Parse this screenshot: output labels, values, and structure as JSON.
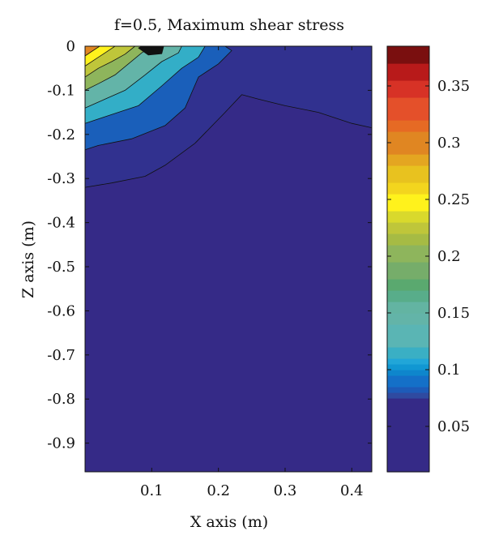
{
  "chart_data": {
    "type": "heatmap",
    "title": "f=0.5, Maximum shear stress",
    "xlabel": "X axis (m)",
    "ylabel": "Z axis (m)",
    "xlim": [
      0.0,
      0.43
    ],
    "ylim": [
      -0.965,
      0.0
    ],
    "x_ticks": [
      0.1,
      0.2,
      0.3,
      0.4
    ],
    "x_tick_labels": [
      "0.1",
      "0.2",
      "0.3",
      "0.4"
    ],
    "y_ticks": [
      0,
      -0.1,
      -0.2,
      -0.3,
      -0.4,
      -0.5,
      -0.6,
      -0.7,
      -0.8,
      -0.9
    ],
    "y_tick_labels": [
      "0",
      "-0.1",
      "-0.2",
      "-0.3",
      "-0.4",
      "-0.5",
      "-0.6",
      "-0.7",
      "-0.8",
      "-0.9"
    ],
    "colorbar": {
      "range": [
        0.01,
        0.385
      ],
      "ticks": [
        0.05,
        0.1,
        0.15,
        0.2,
        0.25,
        0.3,
        0.35
      ],
      "tick_labels": [
        "0.05",
        "0.1",
        "0.15",
        "0.2",
        "0.25",
        "0.3",
        "0.35"
      ],
      "levels": [
        {
          "from": 0.01,
          "to": 0.075,
          "color": "#352a87"
        },
        {
          "from": 0.075,
          "to": 0.08,
          "color": "#2f4aa0"
        },
        {
          "from": 0.08,
          "to": 0.085,
          "color": "#1d5bb8"
        },
        {
          "from": 0.085,
          "to": 0.095,
          "color": "#1470c8"
        },
        {
          "from": 0.095,
          "to": 0.1,
          "color": "#0e86cc"
        },
        {
          "from": 0.1,
          "to": 0.105,
          "color": "#1197d2"
        },
        {
          "from": 0.105,
          "to": 0.11,
          "color": "#21a6d8"
        },
        {
          "from": 0.11,
          "to": 0.12,
          "color": "#3aafc4"
        },
        {
          "from": 0.12,
          "to": 0.14,
          "color": "#5ab5b4"
        },
        {
          "from": 0.14,
          "to": 0.15,
          "color": "#63b4a8"
        },
        {
          "from": 0.15,
          "to": 0.16,
          "color": "#63b4a2"
        },
        {
          "from": 0.16,
          "to": 0.17,
          "color": "#58ad8a"
        },
        {
          "from": 0.17,
          "to": 0.18,
          "color": "#5aa96f"
        },
        {
          "from": 0.18,
          "to": 0.195,
          "color": "#76ad6a"
        },
        {
          "from": 0.195,
          "to": 0.21,
          "color": "#8eb55c"
        },
        {
          "from": 0.21,
          "to": 0.22,
          "color": "#a6bb44"
        },
        {
          "from": 0.22,
          "to": 0.23,
          "color": "#bfc63a"
        },
        {
          "from": 0.23,
          "to": 0.24,
          "color": "#d9d92c"
        },
        {
          "from": 0.24,
          "to": 0.255,
          "color": "#fff21c"
        },
        {
          "from": 0.255,
          "to": 0.265,
          "color": "#f3d51e"
        },
        {
          "from": 0.265,
          "to": 0.28,
          "color": "#e8c21f"
        },
        {
          "from": 0.28,
          "to": 0.29,
          "color": "#e4a621"
        },
        {
          "from": 0.29,
          "to": 0.31,
          "color": "#e08622"
        },
        {
          "from": 0.31,
          "to": 0.32,
          "color": "#e66a24"
        },
        {
          "from": 0.32,
          "to": 0.34,
          "color": "#e4502a"
        },
        {
          "from": 0.34,
          "to": 0.355,
          "color": "#d73226"
        },
        {
          "from": 0.355,
          "to": 0.37,
          "color": "#b81a1a"
        },
        {
          "from": 0.37,
          "to": 0.385,
          "color": "#7a0f0f"
        }
      ]
    },
    "contour_regions": [
      {
        "name": "region-level-0.075",
        "color": "#352a87",
        "polygon": [
          [
            0,
            -0.965
          ],
          [
            0.43,
            -0.965
          ],
          [
            0.43,
            0
          ],
          [
            0,
            0
          ]
        ]
      },
      {
        "name": "region-level-0.08",
        "color": "#31318f",
        "polygon": [
          [
            0,
            -0.32
          ],
          [
            0.04,
            -0.31
          ],
          [
            0.09,
            -0.295
          ],
          [
            0.12,
            -0.27
          ],
          [
            0.165,
            -0.22
          ],
          [
            0.21,
            -0.15
          ],
          [
            0.235,
            -0.11
          ],
          [
            0.26,
            -0.12
          ],
          [
            0.3,
            -0.135
          ],
          [
            0.35,
            -0.15
          ],
          [
            0.4,
            -0.175
          ],
          [
            0.43,
            -0.185
          ],
          [
            0.43,
            0
          ],
          [
            0,
            0
          ]
        ]
      },
      {
        "name": "region-level-0.09",
        "color": "#1a5fba",
        "polygon": [
          [
            0,
            -0.235
          ],
          [
            0.02,
            -0.225
          ],
          [
            0.07,
            -0.21
          ],
          [
            0.12,
            -0.18
          ],
          [
            0.15,
            -0.14
          ],
          [
            0.17,
            -0.07
          ],
          [
            0.2,
            -0.04
          ],
          [
            0.22,
            -0.01
          ],
          [
            0.21,
            0
          ],
          [
            0,
            0
          ]
        ]
      },
      {
        "name": "region-level-0.11",
        "color": "#33aec7",
        "polygon": [
          [
            0,
            -0.175
          ],
          [
            0.03,
            -0.16
          ],
          [
            0.08,
            -0.135
          ],
          [
            0.115,
            -0.09
          ],
          [
            0.145,
            -0.05
          ],
          [
            0.17,
            -0.025
          ],
          [
            0.18,
            0
          ],
          [
            0,
            0
          ]
        ]
      },
      {
        "name": "region-level-0.15",
        "color": "#63b4a8",
        "polygon": [
          [
            0,
            -0.14
          ],
          [
            0.03,
            -0.12
          ],
          [
            0.06,
            -0.1
          ],
          [
            0.09,
            -0.065
          ],
          [
            0.115,
            -0.035
          ],
          [
            0.14,
            -0.015
          ],
          [
            0.145,
            0
          ],
          [
            0,
            0
          ]
        ]
      },
      {
        "name": "region-level-0.18",
        "color": "#8eb55c",
        "polygon": [
          [
            0,
            -0.1
          ],
          [
            0.02,
            -0.085
          ],
          [
            0.045,
            -0.065
          ],
          [
            0.065,
            -0.04
          ],
          [
            0.085,
            -0.015
          ],
          [
            0.1,
            0
          ],
          [
            0,
            0
          ]
        ]
      },
      {
        "name": "region-level-0.21",
        "color": "#bfc63a",
        "polygon": [
          [
            0,
            -0.07
          ],
          [
            0.02,
            -0.05
          ],
          [
            0.04,
            -0.035
          ],
          [
            0.06,
            -0.018
          ],
          [
            0.075,
            0
          ],
          [
            0,
            0
          ]
        ]
      },
      {
        "name": "region-level-0.25",
        "color": "#fff21c",
        "polygon": [
          [
            0,
            -0.045
          ],
          [
            0.015,
            -0.03
          ],
          [
            0.03,
            -0.015
          ],
          [
            0.045,
            0
          ],
          [
            0,
            0
          ]
        ]
      },
      {
        "name": "region-level-0.29",
        "color": "#e08622",
        "polygon": [
          [
            0,
            -0.022
          ],
          [
            0.01,
            -0.012
          ],
          [
            0.022,
            0
          ],
          [
            0,
            0
          ]
        ]
      },
      {
        "name": "region-level-0.37",
        "color": "#111111",
        "polygon": [
          [
            0.08,
            -0.004
          ],
          [
            0.095,
            -0.02
          ],
          [
            0.115,
            -0.017
          ],
          [
            0.118,
            0
          ],
          [
            0.085,
            0
          ]
        ]
      }
    ]
  }
}
